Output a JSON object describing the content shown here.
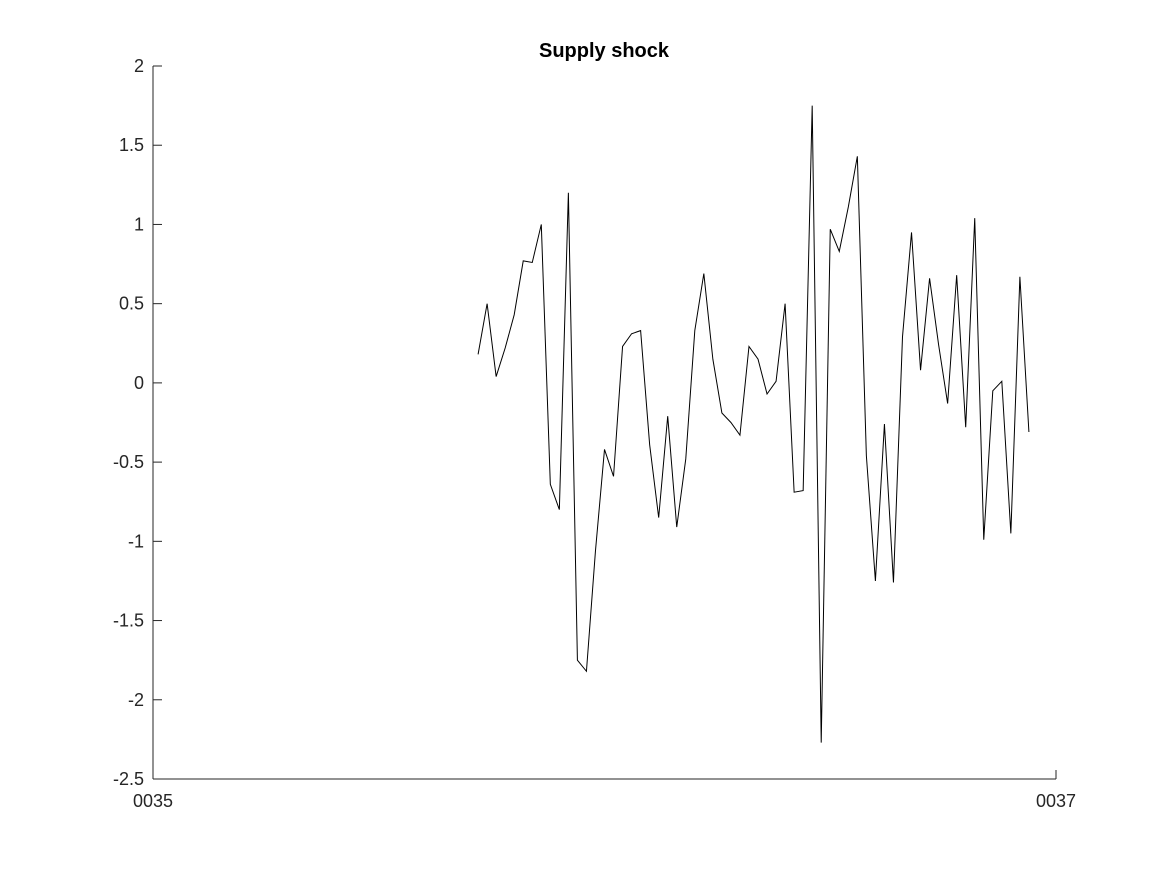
{
  "chart_data": {
    "type": "line",
    "title": "Supply shock",
    "xlabel": "",
    "ylabel": "",
    "xlim": [
      35,
      37
    ],
    "ylim": [
      -2.5,
      2
    ],
    "x_ticks": [
      "0035",
      "0037"
    ],
    "y_ticks": [
      "2",
      "1.5",
      "1",
      "0.5",
      "0",
      "-0.5",
      "-1",
      "-1.5",
      "-2",
      "-2.5"
    ],
    "grid": false,
    "legend": "none",
    "line_color": "#000000",
    "series": [
      {
        "values": [
          0.18,
          0.5,
          0.04,
          0.22,
          0.43,
          0.77,
          0.76,
          1.0,
          -0.64,
          -0.8,
          1.2,
          -1.75,
          -1.82,
          -1.06,
          -0.42,
          -0.59,
          0.23,
          0.31,
          0.33,
          -0.39,
          -0.85,
          -0.21,
          -0.91,
          -0.48,
          0.33,
          0.69,
          0.15,
          -0.19,
          -0.25,
          -0.33,
          0.23,
          0.15,
          -0.07,
          0.01,
          0.5,
          -0.69,
          -0.68,
          1.75,
          -2.27,
          0.97,
          0.83,
          1.11,
          1.43,
          -0.46,
          -1.25,
          -0.26,
          -1.26,
          0.29,
          0.95,
          0.08,
          0.66,
          0.24,
          -0.13,
          0.68,
          -0.28,
          1.04,
          -0.99,
          -0.05,
          0.01,
          -0.95,
          0.67,
          -0.31
        ],
        "x_start": 35.72,
        "x_step": 0.02
      }
    ]
  }
}
